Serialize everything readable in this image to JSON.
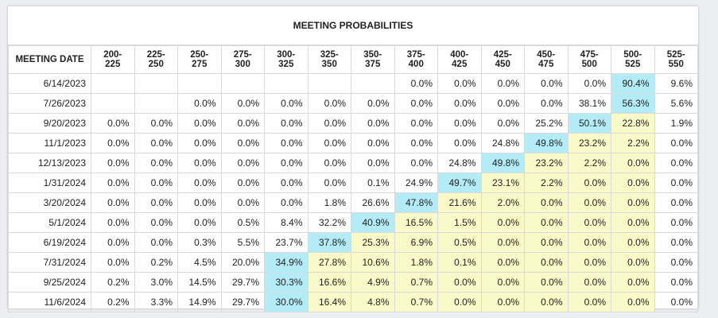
{
  "title": "MEETING PROBABILITIES",
  "colors": {
    "max_cell": "#b3ecf7",
    "other_cell": "#fafac8"
  },
  "chart_data": {
    "type": "table",
    "title": "MEETING PROBABILITIES",
    "columns": [
      "MEETING DATE",
      "200-225",
      "225-250",
      "250-275",
      "275-300",
      "300-325",
      "325-350",
      "350-375",
      "375-400",
      "400-425",
      "425-450",
      "450-475",
      "475-500",
      "500-525",
      "525-550"
    ],
    "rows": [
      {
        "date": "6/14/2023",
        "values": [
          "",
          "",
          "",
          "",
          "",
          "",
          "",
          "0.0%",
          "0.0%",
          "0.0%",
          "0.0%",
          "0.0%",
          "90.4%",
          "9.6%"
        ]
      },
      {
        "date": "7/26/2023",
        "values": [
          "",
          "",
          "0.0%",
          "0.0%",
          "0.0%",
          "0.0%",
          "0.0%",
          "0.0%",
          "0.0%",
          "0.0%",
          "0.0%",
          "38.1%",
          "56.3%",
          "5.6%"
        ]
      },
      {
        "date": "9/20/2023",
        "values": [
          "0.0%",
          "0.0%",
          "0.0%",
          "0.0%",
          "0.0%",
          "0.0%",
          "0.0%",
          "0.0%",
          "0.0%",
          "0.0%",
          "25.2%",
          "50.1%",
          "22.8%",
          "1.9%"
        ]
      },
      {
        "date": "11/1/2023",
        "values": [
          "0.0%",
          "0.0%",
          "0.0%",
          "0.0%",
          "0.0%",
          "0.0%",
          "0.0%",
          "0.0%",
          "0.0%",
          "24.8%",
          "49.8%",
          "23.2%",
          "2.2%",
          "0.0%"
        ]
      },
      {
        "date": "12/13/2023",
        "values": [
          "0.0%",
          "0.0%",
          "0.0%",
          "0.0%",
          "0.0%",
          "0.0%",
          "0.0%",
          "0.0%",
          "24.8%",
          "49.8%",
          "23.2%",
          "2.2%",
          "0.0%",
          "0.0%"
        ]
      },
      {
        "date": "1/31/2024",
        "values": [
          "0.0%",
          "0.0%",
          "0.0%",
          "0.0%",
          "0.0%",
          "0.0%",
          "0.1%",
          "24.9%",
          "49.7%",
          "23.1%",
          "2.2%",
          "0.0%",
          "0.0%",
          "0.0%"
        ]
      },
      {
        "date": "3/20/2024",
        "values": [
          "0.0%",
          "0.0%",
          "0.0%",
          "0.0%",
          "0.0%",
          "1.8%",
          "26.6%",
          "47.8%",
          "21.6%",
          "2.0%",
          "0.0%",
          "0.0%",
          "0.0%",
          "0.0%"
        ]
      },
      {
        "date": "5/1/2024",
        "values": [
          "0.0%",
          "0.0%",
          "0.0%",
          "0.5%",
          "8.4%",
          "32.2%",
          "40.9%",
          "16.5%",
          "1.5%",
          "0.0%",
          "0.0%",
          "0.0%",
          "0.0%",
          "0.0%"
        ]
      },
      {
        "date": "6/19/2024",
        "values": [
          "0.0%",
          "0.0%",
          "0.3%",
          "5.5%",
          "23.7%",
          "37.8%",
          "25.3%",
          "6.9%",
          "0.5%",
          "0.0%",
          "0.0%",
          "0.0%",
          "0.0%",
          "0.0%"
        ]
      },
      {
        "date": "7/31/2024",
        "values": [
          "0.0%",
          "0.2%",
          "4.5%",
          "20.0%",
          "34.9%",
          "27.8%",
          "10.6%",
          "1.8%",
          "0.1%",
          "0.0%",
          "0.0%",
          "0.0%",
          "0.0%",
          "0.0%"
        ]
      },
      {
        "date": "9/25/2024",
        "values": [
          "0.2%",
          "3.0%",
          "14.5%",
          "29.7%",
          "30.3%",
          "16.6%",
          "4.9%",
          "0.7%",
          "0.0%",
          "0.0%",
          "0.0%",
          "0.0%",
          "0.0%",
          "0.0%"
        ]
      },
      {
        "date": "11/6/2024",
        "values": [
          "0.2%",
          "3.3%",
          "14.9%",
          "29.7%",
          "30.0%",
          "16.4%",
          "4.8%",
          "0.7%",
          "0.0%",
          "0.0%",
          "0.0%",
          "0.0%",
          "0.0%",
          "0.0%"
        ]
      }
    ]
  }
}
